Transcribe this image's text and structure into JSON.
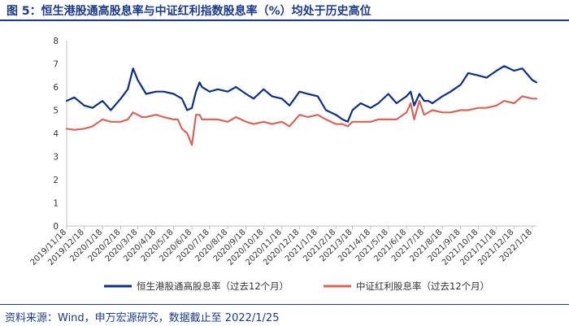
{
  "page": {
    "title": "图 5：恒生港股通高股息率与中证红利指数股息率（%）均处于历史高位",
    "source": "资料来源：Wind，申万宏源研究，数据截止至 2022/1/25"
  },
  "colors": {
    "accent": "#1a3a8a",
    "series1": "#0e2f86",
    "series2": "#d9655a"
  },
  "chart_data": {
    "type": "line",
    "title": "图 5：恒生港股通高股息率与中证红利指数股息率（%）均处于历史高位",
    "xlabel": "",
    "ylabel": "",
    "ylim": [
      0,
      8
    ],
    "yticks": [
      "0",
      "1",
      "2",
      "3",
      "4",
      "5",
      "6",
      "7",
      "8"
    ],
    "x_tick_labels": [
      "2019/11/18",
      "2019/12/18",
      "2020/1/18",
      "2020/2/18",
      "2020/3/18",
      "2020/4/18",
      "2020/5/18",
      "2020/6/18",
      "2020/7/18",
      "2020/8/18",
      "2020/9/18",
      "2020/10/18",
      "2020/11/18",
      "2020/12/18",
      "2021/1/18",
      "2021/2/18",
      "2021/3/18",
      "2021/4/18",
      "2021/5/18",
      "2021/6/18",
      "2021/7/18",
      "2021/8/18",
      "2021/9/18",
      "2021/10/18",
      "2021/11/18",
      "2021/12/18",
      "2022/1/18"
    ],
    "grid": false,
    "legend_position": "bottom",
    "x": [
      "2019/11/18",
      "2019/12/1",
      "2019/12/18",
      "2020/1/1",
      "2020/1/18",
      "2020/2/1",
      "2020/2/18",
      "2020/3/1",
      "2020/3/10",
      "2020/3/18",
      "2020/3/25",
      "2020/4/1",
      "2020/4/18",
      "2020/5/1",
      "2020/5/18",
      "2020/5/25",
      "2020/6/1",
      "2020/6/10",
      "2020/6/18",
      "2020/6/25",
      "2020/7/1",
      "2020/7/5",
      "2020/7/18",
      "2020/8/1",
      "2020/8/18",
      "2020/9/1",
      "2020/9/18",
      "2020/10/1",
      "2020/10/18",
      "2020/11/1",
      "2020/11/18",
      "2020/12/1",
      "2020/12/18",
      "2021/1/1",
      "2021/1/18",
      "2021/2/1",
      "2021/2/18",
      "2021/3/1",
      "2021/3/10",
      "2021/3/18",
      "2021/4/1",
      "2021/4/18",
      "2021/5/1",
      "2021/5/18",
      "2021/6/1",
      "2021/6/18",
      "2021/6/25",
      "2021/7/1",
      "2021/7/10",
      "2021/7/18",
      "2021/7/25",
      "2021/8/1",
      "2021/8/18",
      "2021/9/1",
      "2021/9/18",
      "2021/10/1",
      "2021/10/18",
      "2021/11/1",
      "2021/11/18",
      "2021/12/1",
      "2021/12/18",
      "2022/1/1",
      "2022/1/18",
      "2022/1/25"
    ],
    "series": [
      {
        "name": "恒生港股通高股息率（过去12个月）",
        "values": [
          5.4,
          5.55,
          5.2,
          5.1,
          5.4,
          5.0,
          5.5,
          5.9,
          6.8,
          6.3,
          6.0,
          5.7,
          5.8,
          5.8,
          5.7,
          5.6,
          5.5,
          5.0,
          5.1,
          5.8,
          6.2,
          6.0,
          5.8,
          5.9,
          5.8,
          6.0,
          5.7,
          5.5,
          5.9,
          5.6,
          5.5,
          5.2,
          5.8,
          5.7,
          5.6,
          5.0,
          4.8,
          4.6,
          4.5,
          5.0,
          5.3,
          5.1,
          5.3,
          5.7,
          5.3,
          5.6,
          5.8,
          5.2,
          5.7,
          5.4,
          5.4,
          5.3,
          5.6,
          5.8,
          6.1,
          6.6,
          6.5,
          6.4,
          6.7,
          6.9,
          6.7,
          6.8,
          6.3,
          6.2
        ]
      },
      {
        "name": "中证红利股息率（过去12个月）",
        "values": [
          4.2,
          4.15,
          4.2,
          4.3,
          4.6,
          4.5,
          4.5,
          4.6,
          4.9,
          4.8,
          4.7,
          4.7,
          4.8,
          4.7,
          4.6,
          4.6,
          4.2,
          4.0,
          3.5,
          4.8,
          4.8,
          4.6,
          4.6,
          4.6,
          4.5,
          4.7,
          4.5,
          4.4,
          4.5,
          4.4,
          4.5,
          4.3,
          4.8,
          4.7,
          4.8,
          4.6,
          4.4,
          4.4,
          4.3,
          4.5,
          4.5,
          4.5,
          4.6,
          4.6,
          4.6,
          4.9,
          5.3,
          4.6,
          5.4,
          4.8,
          4.9,
          5.0,
          4.9,
          4.9,
          5.0,
          5.0,
          5.1,
          5.1,
          5.2,
          5.4,
          5.3,
          5.6,
          5.5,
          5.5
        ]
      }
    ]
  }
}
